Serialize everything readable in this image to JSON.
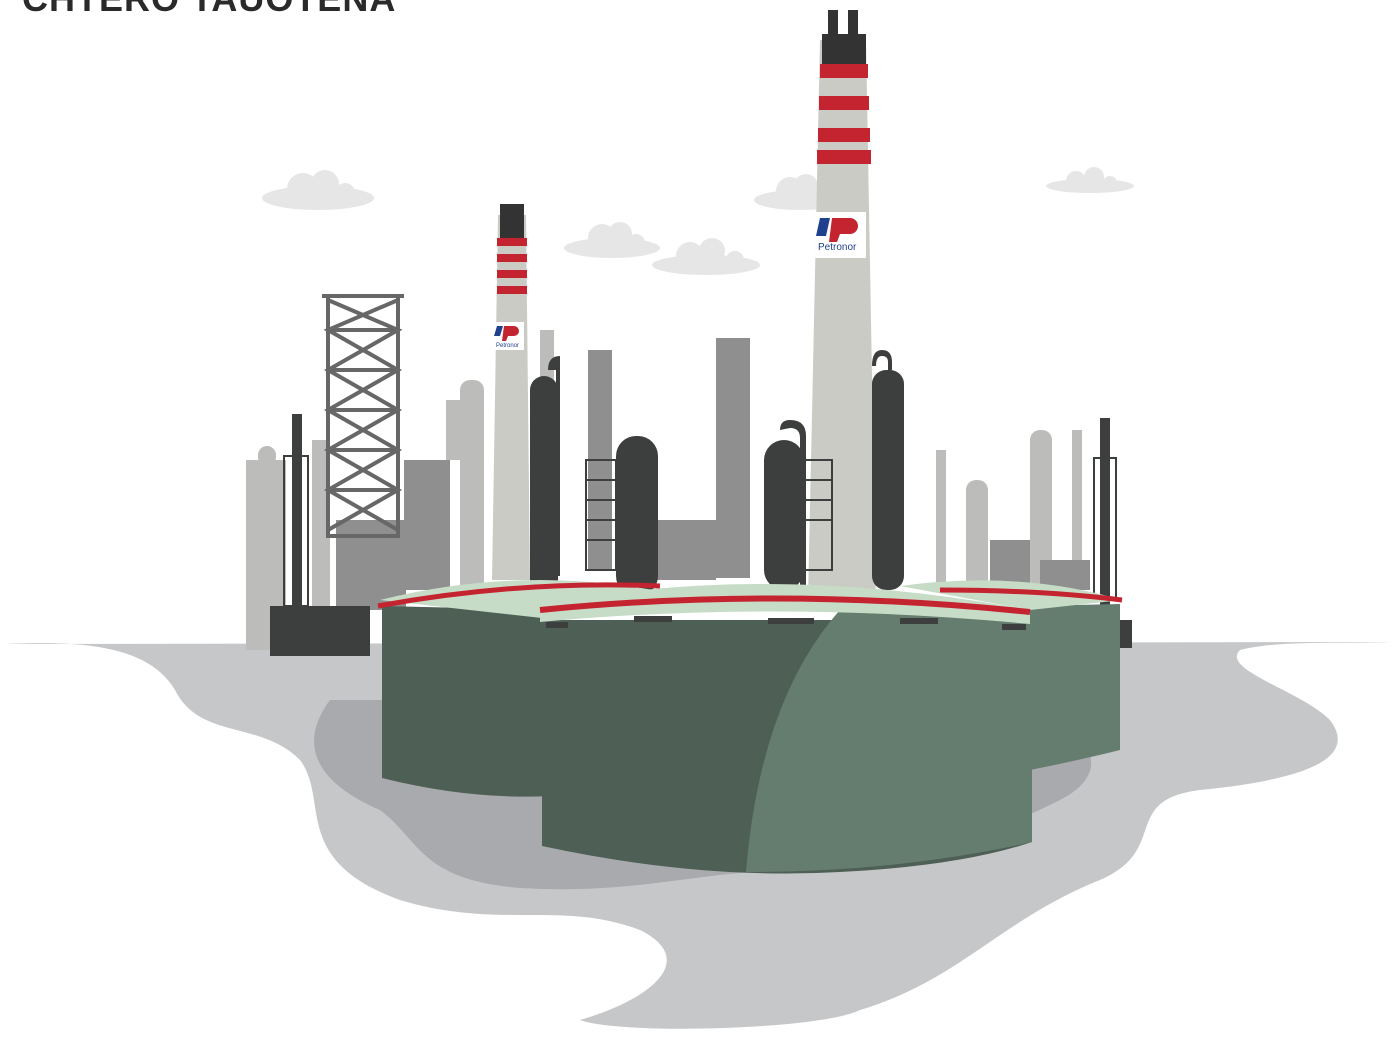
{
  "title": "CHTERO TAUOTENA",
  "logo": {
    "text": "Petronor",
    "colors": {
      "blue": "#1f3f8f",
      "red": "#c4242f"
    }
  },
  "colors": {
    "ground": "#c6c7c9",
    "ground_shadow": "#a9aaad",
    "tank_dark": "#4e5f55",
    "tank_light": "#657d6f",
    "tank_roof": "#c6dcc6",
    "tank_band": "#c4242f",
    "stack_grey": "#cbcbc6",
    "stack_red": "#c4242f",
    "stack_top": "#333333",
    "industry_dark": "#3d3f3e",
    "industry_mid": "#8e8f8e",
    "industry_light": "#b9b9b8",
    "cloud": "#e6e6e6"
  },
  "icons": [
    "cloud-icon",
    "petronor-logo-icon"
  ]
}
